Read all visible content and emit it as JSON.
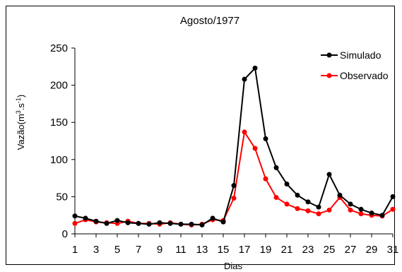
{
  "chart_data": {
    "type": "line",
    "title": "Agosto/1977",
    "xlabel": "Dias",
    "ylabel_main": "Vazão(m",
    "ylabel_sup1": "3",
    "ylabel_mid": ".s",
    "ylabel_sup2": "-1",
    "ylabel_end": ")",
    "xlim": [
      1,
      31
    ],
    "ylim": [
      0,
      250
    ],
    "x_ticks": [
      1,
      3,
      5,
      7,
      9,
      11,
      13,
      15,
      17,
      19,
      21,
      23,
      25,
      27,
      29,
      31
    ],
    "y_ticks": [
      0,
      50,
      100,
      150,
      200,
      250
    ],
    "legend_position": "top-right",
    "grid": false,
    "x": [
      1,
      2,
      3,
      4,
      5,
      6,
      7,
      8,
      9,
      10,
      11,
      12,
      13,
      14,
      15,
      16,
      17,
      18,
      19,
      20,
      21,
      22,
      23,
      24,
      25,
      26,
      27,
      28,
      29,
      30,
      31
    ],
    "series": [
      {
        "name": "Simulado",
        "color": "#000000",
        "values": [
          24,
          21,
          17,
          14,
          18,
          15,
          14,
          13,
          15,
          14,
          13,
          13,
          12,
          21,
          16,
          65,
          208,
          223,
          128,
          89,
          67,
          52,
          43,
          36,
          80,
          52,
          40,
          33,
          28,
          25,
          50
        ]
      },
      {
        "name": "Observado",
        "color": "#ff0000",
        "values": [
          14,
          19,
          16,
          15,
          14,
          17,
          14,
          14,
          13,
          15,
          13,
          12,
          13,
          19,
          18,
          48,
          137,
          115,
          74,
          49,
          40,
          34,
          31,
          27,
          32,
          49,
          32,
          27,
          25,
          24,
          33
        ]
      }
    ]
  }
}
